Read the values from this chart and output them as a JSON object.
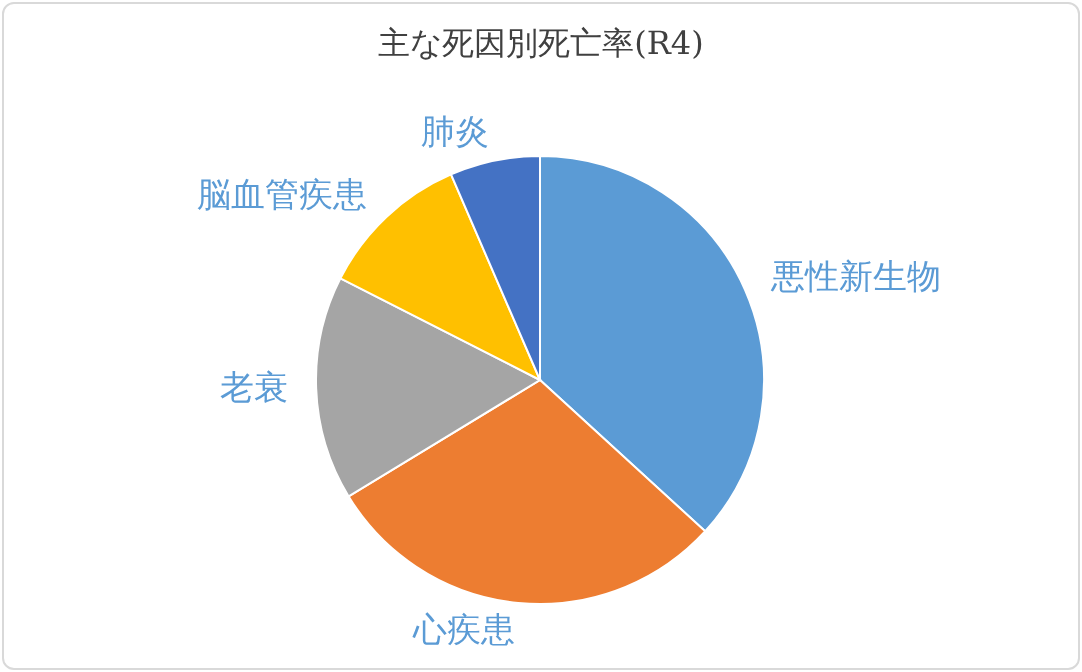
{
  "chart_data": {
    "type": "pie",
    "title": "主な死因別死亡率(R4)",
    "categories": [
      "悪性新生物",
      "心疾患",
      "老衰",
      "脳血管疾患",
      "肺炎"
    ],
    "values": [
      36.8,
      29.5,
      16.2,
      11.0,
      6.5
    ],
    "colors": [
      "#5b9bd5",
      "#ed7d31",
      "#a5a5a5",
      "#ffc000",
      "#4472c4"
    ]
  }
}
